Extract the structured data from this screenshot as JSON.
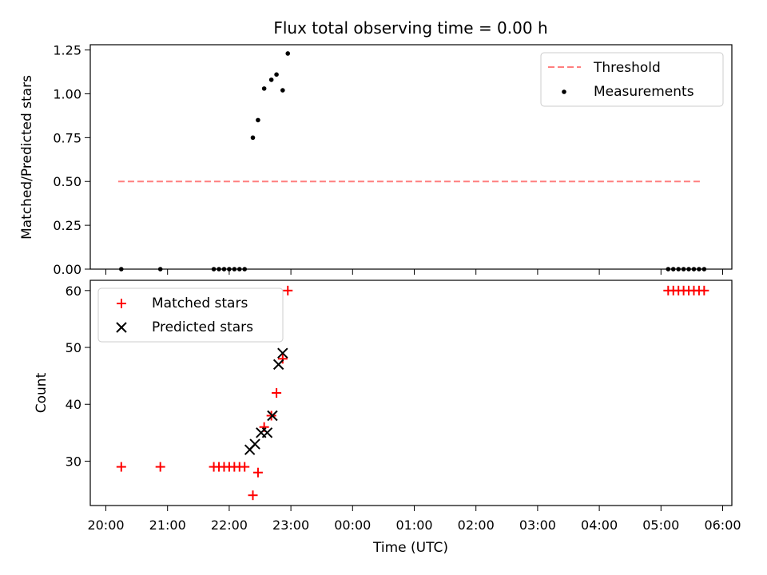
{
  "chart_data": {
    "title": "Flux total observing time = 0.00 h",
    "type": "scatter",
    "shared_x": {
      "label": "Time (UTC)",
      "unit": "hours",
      "xlim": [
        "20:00",
        "06:00"
      ],
      "ticks": [
        "20:00",
        "21:00",
        "22:00",
        "23:00",
        "00:00",
        "01:00",
        "02:00",
        "03:00",
        "04:00",
        "05:00",
        "06:00"
      ]
    },
    "panels": [
      {
        "ylabel": "Matched/Predicted stars",
        "ylim": [
          0,
          1.28
        ],
        "yticks": [
          "0.00",
          "0.25",
          "0.50",
          "0.75",
          "1.00",
          "1.25"
        ],
        "legend": {
          "position": "upper right",
          "entries": [
            "Threshold",
            "Measurements"
          ]
        },
        "series": [
          {
            "name": "Threshold",
            "type": "line",
            "style": "dashed",
            "color": "#ff7f7f",
            "x": [
              "20:12",
              "05:40"
            ],
            "y": [
              0.5,
              0.5
            ]
          },
          {
            "name": "Measurements",
            "type": "scatter",
            "marker": "dot",
            "color": "#000000",
            "x": [
              "20:15",
              "20:53",
              "21:45",
              "21:50",
              "21:55",
              "22:00",
              "22:05",
              "22:10",
              "22:15",
              "22:23",
              "22:28",
              "22:34",
              "22:41",
              "22:46",
              "22:52",
              "22:57",
              "05:07",
              "05:12",
              "05:17",
              "05:22",
              "05:27",
              "05:32",
              "05:37",
              "05:42"
            ],
            "y": [
              0,
              0,
              0,
              0,
              0,
              0,
              0,
              0,
              0,
              0.75,
              0.85,
              1.03,
              1.08,
              1.11,
              1.02,
              1.23,
              0,
              0,
              0,
              0,
              0,
              0,
              0,
              0
            ]
          }
        ]
      },
      {
        "ylabel": "Count",
        "ylim": [
          22.2,
          61.8
        ],
        "yticks": [
          "30",
          "40",
          "50",
          "60"
        ],
        "legend": {
          "position": "upper left",
          "entries": [
            "Matched stars",
            "Predicted stars"
          ]
        },
        "series": [
          {
            "name": "Matched stars",
            "type": "scatter",
            "marker": "plus",
            "color": "#ff0000",
            "x": [
              "20:15",
              "20:53",
              "21:45",
              "21:50",
              "21:55",
              "22:00",
              "22:05",
              "22:10",
              "22:15",
              "22:23",
              "22:28",
              "22:34",
              "22:41",
              "22:46",
              "22:52",
              "22:57",
              "05:07",
              "05:12",
              "05:17",
              "05:22",
              "05:27",
              "05:32",
              "05:37",
              "05:42"
            ],
            "y": [
              29,
              29,
              29,
              29,
              29,
              29,
              29,
              29,
              29,
              24,
              28,
              36,
              38,
              42,
              48,
              60,
              60,
              60,
              60,
              60,
              60,
              60,
              60,
              60
            ]
          },
          {
            "name": "Predicted stars",
            "type": "scatter",
            "marker": "x",
            "color": "#000000",
            "x": [
              "22:20",
              "22:25",
              "22:31",
              "22:37",
              "22:42",
              "22:48",
              "22:52"
            ],
            "y": [
              32,
              33,
              35,
              35,
              38,
              47,
              49
            ]
          }
        ]
      }
    ]
  }
}
